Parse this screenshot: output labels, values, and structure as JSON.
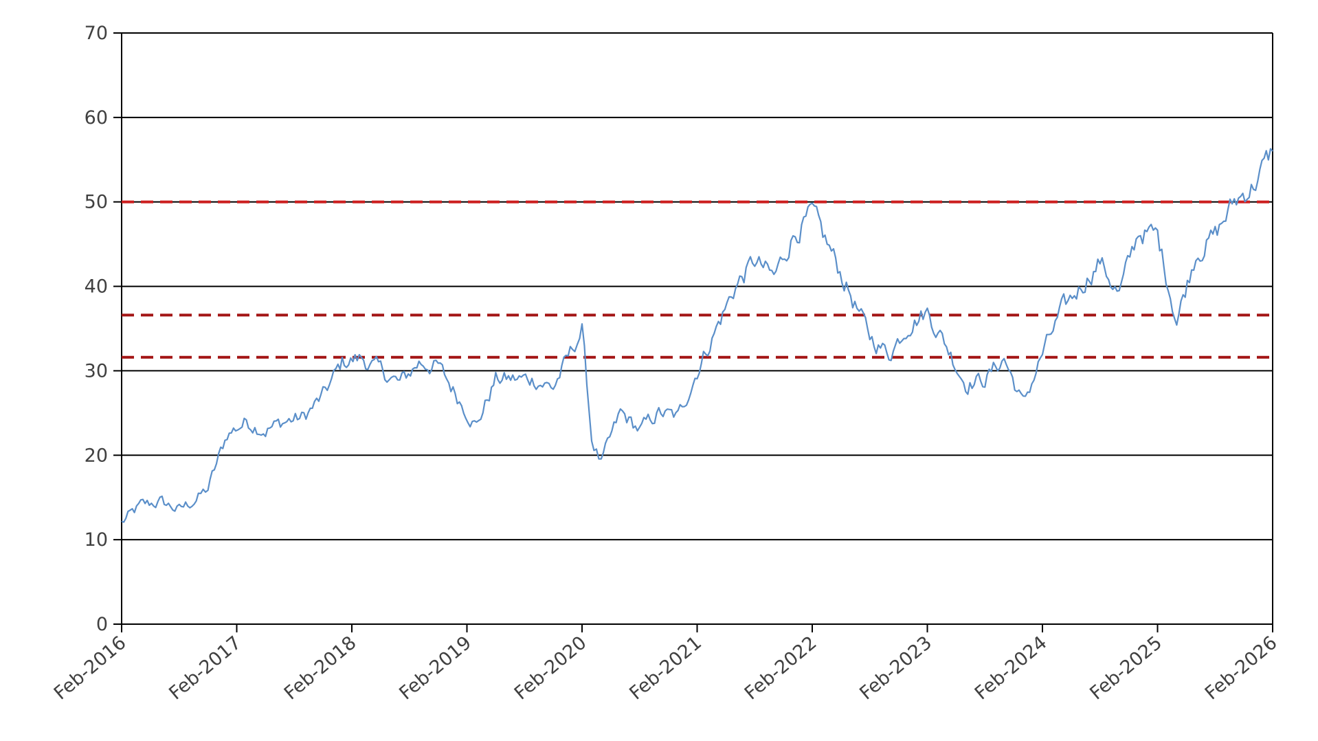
{
  "chart_data": {
    "type": "line",
    "title": "",
    "xlabel": "",
    "ylabel": "",
    "ylim": [
      0,
      70
    ],
    "yticks": [
      0,
      10,
      20,
      30,
      40,
      50,
      60,
      70
    ],
    "xlim": [
      "2016-02",
      "2026-02"
    ],
    "xticks": [
      "Feb-2016",
      "Feb-2017",
      "Feb-2018",
      "Feb-2019",
      "Feb-2020",
      "Feb-2021",
      "Feb-2022",
      "Feb-2023",
      "Feb-2024",
      "Feb-2025",
      "Feb-2026"
    ],
    "grid": "horizontal",
    "legend": "none",
    "series": [
      {
        "color": "#5b8fc9",
        "x": [
          "2016-02",
          "2016-04",
          "2016-06",
          "2016-08",
          "2016-10",
          "2016-11",
          "2017-01",
          "2017-03",
          "2017-05",
          "2017-07",
          "2017-09",
          "2017-11",
          "2018-01",
          "2018-03",
          "2018-05",
          "2018-07",
          "2018-09",
          "2018-11",
          "2019-01",
          "2019-03",
          "2019-05",
          "2019-07",
          "2019-09",
          "2019-11",
          "2020-01",
          "2020-02",
          "2020-03",
          "2020-04",
          "2020-06",
          "2020-08",
          "2020-10",
          "2020-12",
          "2021-02",
          "2021-04",
          "2021-06",
          "2021-08",
          "2021-10",
          "2021-12",
          "2022-02",
          "2022-04",
          "2022-06",
          "2022-08",
          "2022-10",
          "2022-12",
          "2023-02",
          "2023-04",
          "2023-06",
          "2023-08",
          "2023-10",
          "2023-12",
          "2024-02",
          "2024-04",
          "2024-06",
          "2024-08",
          "2024-10",
          "2024-12",
          "2025-02",
          "2025-04",
          "2025-06",
          "2025-08",
          "2025-10",
          "2025-12",
          "2026-02"
        ],
        "values": [
          12.0,
          14.0,
          14.5,
          13.5,
          15.0,
          16.0,
          22.5,
          24.0,
          23.0,
          24.0,
          24.5,
          27.0,
          31.0,
          31.5,
          30.0,
          28.5,
          31.0,
          30.5,
          27.0,
          23.5,
          29.0,
          29.0,
          29.0,
          28.0,
          32.5,
          35.0,
          22.0,
          19.0,
          25.0,
          23.0,
          25.0,
          24.5,
          30.0,
          35.0,
          40.0,
          43.0,
          41.0,
          46.0,
          48.5,
          44.0,
          39.0,
          34.0,
          32.0,
          35.5,
          37.0,
          33.0,
          28.5,
          29.0,
          31.5,
          26.0,
          32.0,
          37.0,
          40.0,
          43.0,
          39.0,
          46.5,
          46.0,
          36.0,
          44.0,
          46.0,
          50.0,
          52.0,
          56.0
        ]
      }
    ],
    "reference_lines": [
      {
        "y": 50.0,
        "color": "#cc1f1f",
        "style": "dashed"
      },
      {
        "y": 36.6,
        "color": "#a31515",
        "style": "dashed"
      },
      {
        "y": 31.6,
        "color": "#a31515",
        "style": "dashed"
      }
    ]
  }
}
